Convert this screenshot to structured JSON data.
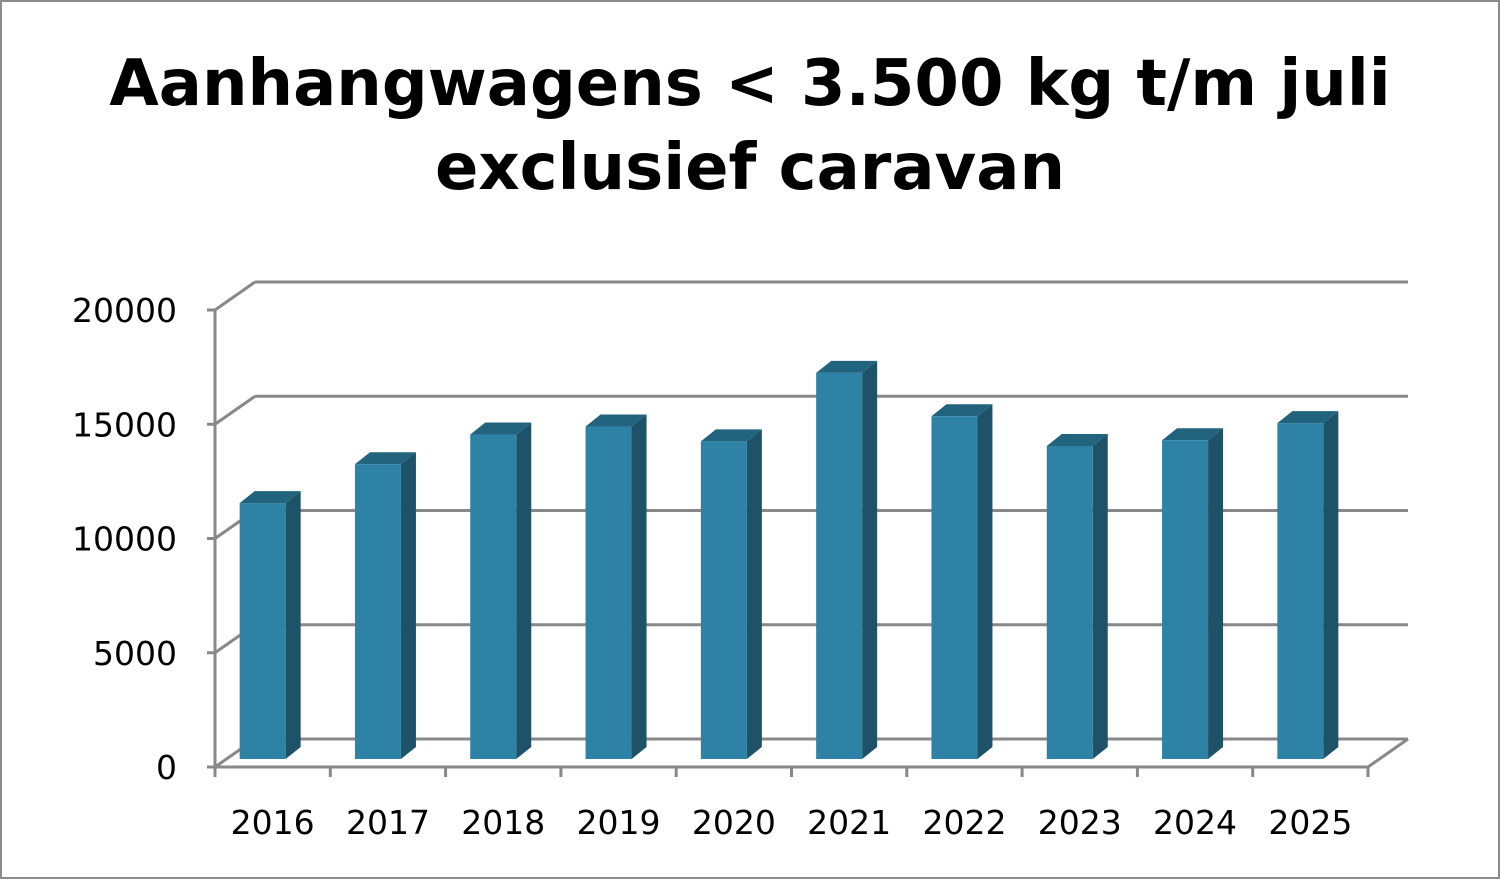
{
  "chart_data": {
    "type": "bar",
    "title_lines": [
      "Aanhangwagens < 3.500 kg t/m juli",
      "exclusief caravan"
    ],
    "categories": [
      "2016",
      "2017",
      "2018",
      "2019",
      "2020",
      "2021",
      "2022",
      "2023",
      "2024",
      "2025"
    ],
    "values": [
      11200,
      12900,
      14200,
      14550,
      13900,
      16900,
      15000,
      13700,
      13950,
      14700
    ],
    "y_ticks": [
      "0",
      "5000",
      "10000",
      "15000",
      "20000"
    ],
    "ylim": [
      0,
      20000
    ],
    "grid": true,
    "legend": "none",
    "colors": {
      "bar_front": "#2e82a6",
      "bar_side": "#1d5268",
      "bar_top": "#22637e",
      "grid": "#888888"
    }
  }
}
